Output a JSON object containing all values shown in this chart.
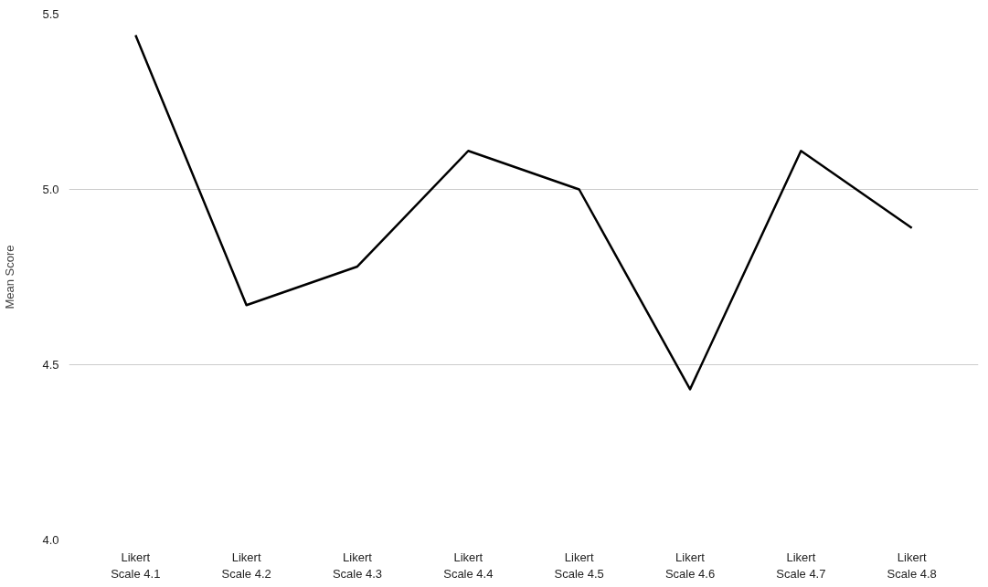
{
  "chart_data": {
    "type": "line",
    "ylabel": "Mean Score",
    "categories": [
      "Likert Scale 4.1",
      "Likert Scale 4.2",
      "Likert Scale 4.3",
      "Likert Scale 4.4",
      "Likert Scale 4.5",
      "Likert Scale 4.6",
      "Likert Scale 4.7",
      "Likert Scale 4.8"
    ],
    "series": [
      {
        "color": "#000000",
        "values": [
          5.44,
          4.67,
          4.78,
          5.11,
          5.0,
          4.43,
          5.11,
          4.89
        ]
      }
    ],
    "ylim": [
      4.0,
      5.5
    ],
    "yticks": [
      {
        "value": 4.0,
        "label": "4.0"
      },
      {
        "value": 4.5,
        "label": "4.5"
      },
      {
        "value": 5.0,
        "label": "5.0"
      },
      {
        "value": 5.5,
        "label": "5.5"
      }
    ],
    "grid": "y",
    "marker": "none",
    "line_style": "solid"
  }
}
